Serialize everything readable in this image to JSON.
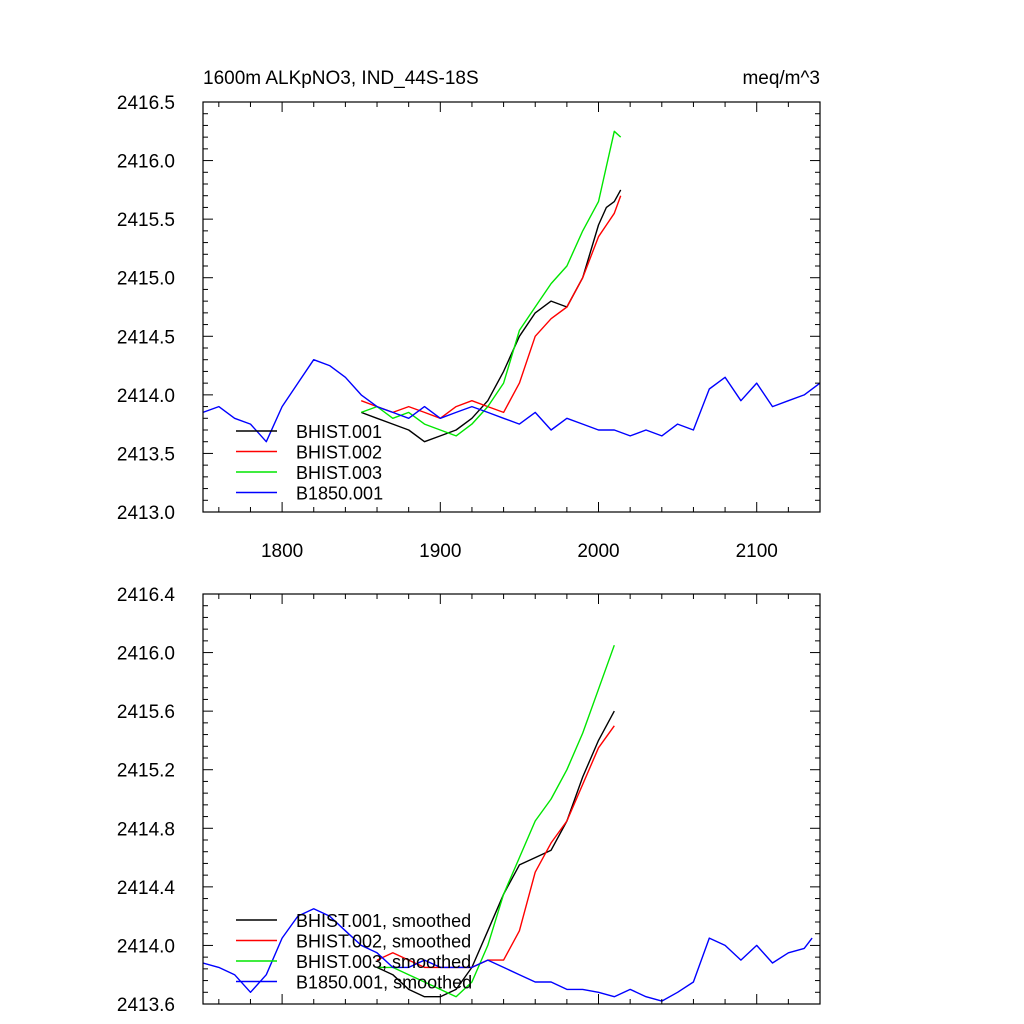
{
  "chart_data": [
    {
      "type": "line",
      "title": "1600m ALKpNO3, IND_44S-18S",
      "units": "meq/m^3",
      "xlim": [
        1750,
        2140
      ],
      "ylim": [
        2413.0,
        2416.5
      ],
      "xticks": [
        1800,
        1900,
        2000,
        2100
      ],
      "xtick_labels": [
        "1800",
        "1900",
        "2000",
        "2100"
      ],
      "yticks": [
        2413.0,
        2413.5,
        2414.0,
        2414.5,
        2415.0,
        2415.5,
        2416.0,
        2416.5
      ],
      "ytick_labels": [
        "2413.0",
        "2413.5",
        "2414.0",
        "2414.5",
        "2415.0",
        "2415.5",
        "2416.0",
        "2416.5"
      ],
      "grid": false,
      "legend_position": "lower-left",
      "series": [
        {
          "name": "BHIST.001",
          "color": "#000000",
          "x": [
            1850,
            1860,
            1870,
            1880,
            1890,
            1900,
            1910,
            1920,
            1930,
            1940,
            1950,
            1960,
            1970,
            1980,
            1990,
            2000,
            2005,
            2010,
            2014
          ],
          "y": [
            2413.85,
            2413.8,
            2413.75,
            2413.7,
            2413.6,
            2413.65,
            2413.7,
            2413.8,
            2413.95,
            2414.2,
            2414.5,
            2414.7,
            2414.8,
            2414.75,
            2415.0,
            2415.45,
            2415.6,
            2415.65,
            2415.75
          ]
        },
        {
          "name": "BHIST.002",
          "color": "#ff0000",
          "x": [
            1850,
            1860,
            1870,
            1880,
            1890,
            1900,
            1910,
            1920,
            1930,
            1940,
            1950,
            1960,
            1970,
            1980,
            1990,
            2000,
            2005,
            2010,
            2014
          ],
          "y": [
            2413.95,
            2413.9,
            2413.85,
            2413.9,
            2413.85,
            2413.8,
            2413.9,
            2413.95,
            2413.9,
            2413.85,
            2414.1,
            2414.5,
            2414.65,
            2414.75,
            2415.0,
            2415.35,
            2415.45,
            2415.55,
            2415.7
          ]
        },
        {
          "name": "BHIST.003",
          "color": "#00e600",
          "x": [
            1850,
            1860,
            1870,
            1880,
            1890,
            1900,
            1910,
            1920,
            1930,
            1940,
            1950,
            1960,
            1970,
            1980,
            1990,
            2000,
            2005,
            2010,
            2014
          ],
          "y": [
            2413.85,
            2413.9,
            2413.8,
            2413.85,
            2413.75,
            2413.7,
            2413.65,
            2413.75,
            2413.9,
            2414.1,
            2414.55,
            2414.75,
            2414.95,
            2415.1,
            2415.4,
            2415.65,
            2415.95,
            2416.25,
            2416.2
          ]
        },
        {
          "name": "B1850.001",
          "color": "#0000ff",
          "x": [
            1750,
            1760,
            1770,
            1780,
            1790,
            1800,
            1810,
            1820,
            1830,
            1840,
            1850,
            1860,
            1870,
            1880,
            1890,
            1900,
            1910,
            1920,
            1930,
            1940,
            1950,
            1960,
            1970,
            1980,
            1990,
            2000,
            2010,
            2020,
            2030,
            2040,
            2050,
            2060,
            2070,
            2080,
            2090,
            2100,
            2110,
            2120,
            2130,
            2140
          ],
          "y": [
            2413.85,
            2413.9,
            2413.8,
            2413.75,
            2413.6,
            2413.9,
            2414.1,
            2414.3,
            2414.25,
            2414.15,
            2414.0,
            2413.9,
            2413.85,
            2413.8,
            2413.9,
            2413.8,
            2413.85,
            2413.9,
            2413.85,
            2413.8,
            2413.75,
            2413.85,
            2413.7,
            2413.8,
            2413.75,
            2413.7,
            2413.7,
            2413.65,
            2413.7,
            2413.65,
            2413.75,
            2413.7,
            2414.05,
            2414.15,
            2413.95,
            2414.1,
            2413.9,
            2413.95,
            2414.0,
            2414.1
          ]
        }
      ]
    },
    {
      "type": "line",
      "title": "",
      "xlim": [
        1750,
        2140
      ],
      "ylim": [
        2413.6,
        2416.4
      ],
      "xticks": [
        1800,
        1900,
        2000,
        2100
      ],
      "yticks": [
        2413.6,
        2414.0,
        2414.4,
        2414.8,
        2415.2,
        2415.6,
        2416.0,
        2416.4
      ],
      "ytick_labels": [
        "2413.6",
        "2414.0",
        "2414.4",
        "2414.8",
        "2415.2",
        "2415.6",
        "2416.0",
        "2416.4"
      ],
      "grid": false,
      "legend_position": "lower-left",
      "series": [
        {
          "name": "BHIST.001, smoothed",
          "color": "#000000",
          "x": [
            1860,
            1870,
            1880,
            1890,
            1900,
            1910,
            1920,
            1930,
            1940,
            1950,
            1960,
            1970,
            1980,
            1990,
            2000,
            2010
          ],
          "y": [
            2413.85,
            2413.8,
            2413.7,
            2413.65,
            2413.65,
            2413.7,
            2413.85,
            2414.1,
            2414.35,
            2414.55,
            2414.6,
            2414.65,
            2414.85,
            2415.15,
            2415.4,
            2415.6
          ]
        },
        {
          "name": "BHIST.002, smoothed",
          "color": "#ff0000",
          "x": [
            1860,
            1870,
            1880,
            1890,
            1900,
            1910,
            1920,
            1930,
            1940,
            1950,
            1960,
            1970,
            1980,
            1990,
            2000,
            2010
          ],
          "y": [
            2413.9,
            2413.95,
            2413.9,
            2413.85,
            2413.85,
            2413.85,
            2413.85,
            2413.9,
            2413.9,
            2414.1,
            2414.5,
            2414.7,
            2414.85,
            2415.1,
            2415.35,
            2415.5
          ]
        },
        {
          "name": "BHIST.003, smoothed",
          "color": "#00e600",
          "x": [
            1860,
            1870,
            1880,
            1890,
            1900,
            1910,
            1920,
            1930,
            1940,
            1950,
            1960,
            1970,
            1980,
            1990,
            2000,
            2010
          ],
          "y": [
            2413.85,
            2413.85,
            2413.8,
            2413.75,
            2413.7,
            2413.65,
            2413.75,
            2414.0,
            2414.35,
            2414.6,
            2414.85,
            2415.0,
            2415.2,
            2415.45,
            2415.75,
            2416.05
          ]
        },
        {
          "name": "B1850.001, smoothed",
          "color": "#0000ff",
          "x": [
            1750,
            1760,
            1770,
            1780,
            1790,
            1800,
            1810,
            1820,
            1830,
            1840,
            1850,
            1860,
            1870,
            1880,
            1890,
            1900,
            1910,
            1920,
            1930,
            1940,
            1950,
            1960,
            1970,
            1980,
            1990,
            2000,
            2010,
            2020,
            2030,
            2040,
            2050,
            2060,
            2070,
            2080,
            2090,
            2100,
            2110,
            2120,
            2130,
            2135
          ],
          "y": [
            2413.88,
            2413.85,
            2413.8,
            2413.68,
            2413.8,
            2414.05,
            2414.2,
            2414.25,
            2414.2,
            2414.1,
            2414.0,
            2413.95,
            2413.85,
            2413.85,
            2413.9,
            2413.85,
            2413.85,
            2413.85,
            2413.9,
            2413.85,
            2413.8,
            2413.75,
            2413.75,
            2413.7,
            2413.7,
            2413.68,
            2413.65,
            2413.7,
            2413.65,
            2413.62,
            2413.68,
            2413.75,
            2414.05,
            2414.0,
            2413.9,
            2414.0,
            2413.88,
            2413.95,
            2413.98,
            2414.05
          ]
        }
      ]
    }
  ]
}
